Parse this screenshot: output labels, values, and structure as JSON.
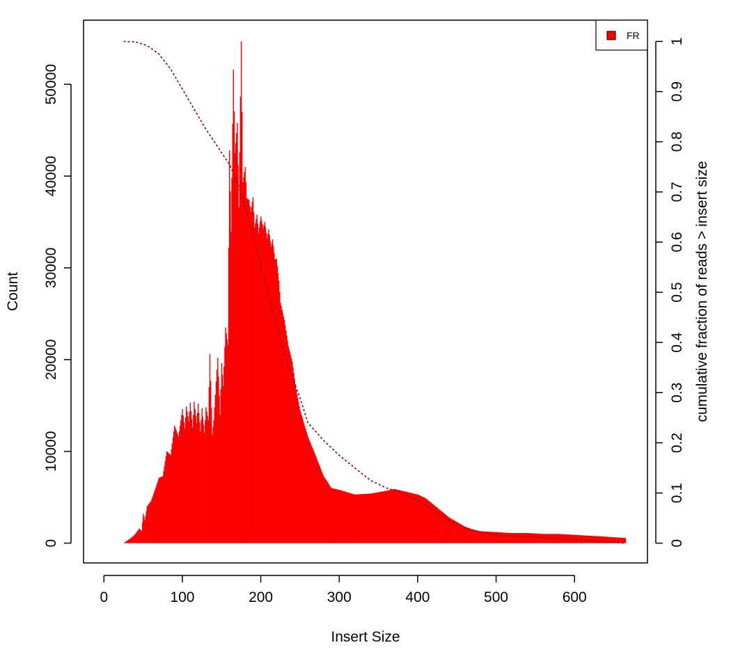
{
  "chart_data": {
    "type": "bar",
    "title": "",
    "xlabel": "Insert Size",
    "ylabel": "Count",
    "y2label": "cumulative fraction of reads > insert size",
    "xlim": [
      -26,
      693
    ],
    "ylim": [
      -2156,
      56990
    ],
    "y2lim": [
      -0.0394,
      1.0423
    ],
    "x_ticks": [
      0,
      100,
      200,
      300,
      400,
      500,
      600
    ],
    "y_ticks": [
      0,
      10000,
      20000,
      30000,
      40000,
      50000
    ],
    "y2_ticks": [
      0,
      0.1,
      0.2,
      0.3,
      0.4,
      0.5,
      0.6,
      0.7,
      0.8,
      0.9,
      1
    ],
    "grid": false,
    "legend_position": "top-right",
    "colors": {
      "bars": "#ff0000",
      "cumulative_line": "#8b0000"
    },
    "series": [
      {
        "name": "FR",
        "kind": "histogram",
        "color": "#ff0000",
        "x": [
          25,
          30,
          35,
          40,
          45,
          48,
          50,
          52,
          55,
          60,
          65,
          70,
          75,
          80,
          85,
          90,
          95,
          100,
          103,
          105,
          108,
          110,
          113,
          115,
          118,
          120,
          123,
          125,
          128,
          130,
          133,
          135,
          138,
          140,
          143,
          145,
          148,
          150,
          152,
          155,
          158,
          160,
          162,
          165,
          167,
          170,
          172,
          175,
          177,
          180,
          182,
          185,
          187,
          190,
          192,
          195,
          197,
          200,
          203,
          205,
          208,
          210,
          213,
          215,
          218,
          220,
          223,
          225,
          230,
          235,
          240,
          245,
          250,
          260,
          270,
          280,
          290,
          300,
          320,
          340,
          360,
          370,
          380,
          390,
          400,
          410,
          420,
          430,
          440,
          450,
          460,
          470,
          480,
          500,
          520,
          540,
          560,
          580,
          600,
          620,
          640,
          665
        ],
        "values": [
          0,
          300,
          600,
          1000,
          1600,
          1300,
          3200,
          2500,
          4000,
          4600,
          5800,
          7100,
          7300,
          10000,
          9600,
          12800,
          11600,
          14600,
          12500,
          14900,
          13300,
          15300,
          12600,
          15400,
          13100,
          15200,
          12200,
          14700,
          12000,
          14800,
          13400,
          20600,
          11800,
          13400,
          17600,
          20200,
          14000,
          19600,
          17100,
          23500,
          21600,
          42800,
          33900,
          51600,
          42500,
          45800,
          36600,
          54700,
          39300,
          41000,
          37600,
          37400,
          36100,
          37700,
          34400,
          35800,
          33800,
          35600,
          34300,
          35000,
          33200,
          34200,
          32300,
          33100,
          30900,
          31000,
          28600,
          26200,
          24300,
          21500,
          19800,
          16700,
          14500,
          11600,
          9500,
          7300,
          6000,
          5800,
          5300,
          5400,
          5700,
          5900,
          5700,
          5500,
          5300,
          4900,
          4200,
          3500,
          2800,
          2300,
          1800,
          1500,
          1300,
          1200,
          1100,
          1100,
          1000,
          1000,
          900,
          800,
          700,
          550
        ]
      },
      {
        "name": "",
        "kind": "cumulative",
        "color": "#8b0000",
        "x": [
          25,
          40,
          55,
          70,
          85,
          100,
          115,
          130,
          145,
          160,
          170,
          180,
          190,
          200,
          210,
          220,
          230,
          240,
          250,
          260,
          280,
          300,
          320,
          340,
          360,
          380,
          400,
          420,
          440,
          460,
          480,
          500,
          550,
          600,
          665
        ],
        "values": [
          1.0,
          0.999,
          0.992,
          0.975,
          0.945,
          0.905,
          0.865,
          0.825,
          0.79,
          0.755,
          0.72,
          0.67,
          0.615,
          0.555,
          0.495,
          0.435,
          0.38,
          0.33,
          0.29,
          0.24,
          0.205,
          0.175,
          0.15,
          0.125,
          0.11,
          0.1,
          0.085,
          0.065,
          0.045,
          0.03,
          0.022,
          0.016,
          0.012,
          0.007,
          0.0
        ]
      }
    ]
  }
}
